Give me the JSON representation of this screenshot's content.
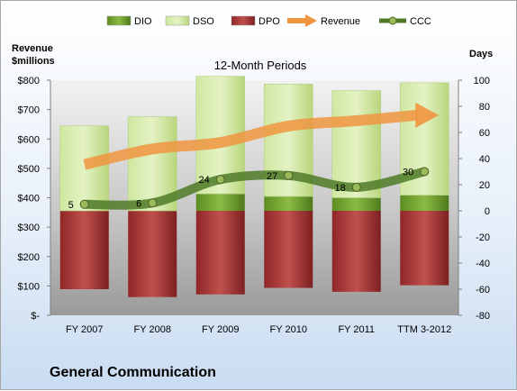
{
  "company_name": "General Communication",
  "chart_data": {
    "type": "bar",
    "title": "12-Month Periods",
    "left_axis_label": [
      "Revenue",
      "$millions"
    ],
    "right_axis_label": "Days",
    "categories": [
      "FY 2007",
      "FY 2008",
      "FY 2009",
      "FY 2010",
      "FY 2011",
      "TTM 3-2012"
    ],
    "left_ylim": [
      0,
      800
    ],
    "left_ticks": [
      0,
      100,
      200,
      300,
      400,
      500,
      600,
      700,
      800
    ],
    "left_tick_labels": [
      "$-",
      "$100",
      "$200",
      "$300",
      "$400",
      "$500",
      "$600",
      "$700",
      "$800"
    ],
    "right_ylim": [
      -80,
      100
    ],
    "right_ticks": [
      -80,
      -60,
      -40,
      -20,
      0,
      20,
      40,
      60,
      80,
      100
    ],
    "right_tick_labels": [
      "-80",
      "-60",
      "-40",
      "-20",
      "0",
      "20",
      "40",
      "60",
      "80",
      "100"
    ],
    "legend_position": "top",
    "grid": false,
    "series": [
      {
        "name": "DIO",
        "kind": "stacked-bar",
        "axis": "right",
        "color": "#6a9a2c",
        "values": [
          0,
          0,
          13,
          11,
          10,
          12
        ]
      },
      {
        "name": "DSO",
        "kind": "stacked-bar",
        "axis": "right",
        "color": "#c8e08c",
        "values": [
          65,
          72,
          90,
          86,
          82,
          86
        ]
      },
      {
        "name": "DPO",
        "kind": "stacked-bar",
        "axis": "right",
        "color": "#a33334",
        "values": [
          -60,
          -66,
          -64,
          -59,
          -62,
          -57
        ]
      },
      {
        "name": "Revenue",
        "kind": "arrow-line",
        "axis": "left",
        "color": "#f0953f",
        "values": [
          513,
          566,
          588,
          644,
          662,
          681
        ]
      },
      {
        "name": "CCC",
        "kind": "line-markers",
        "axis": "right",
        "color": "#4f7a28",
        "values": [
          5,
          6,
          24,
          27,
          18,
          30
        ],
        "labels": [
          "5",
          "6",
          "24",
          "27",
          "18",
          "30"
        ]
      }
    ]
  }
}
